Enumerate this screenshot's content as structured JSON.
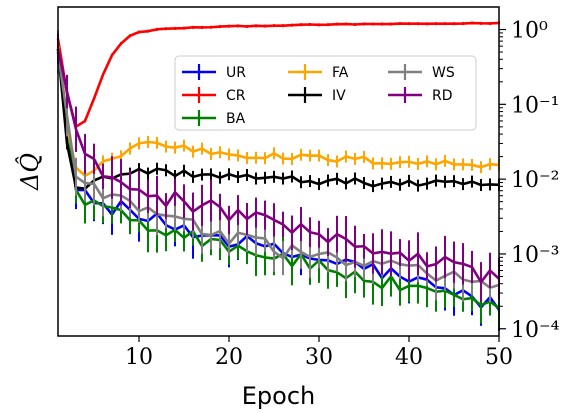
{
  "chart_data": {
    "type": "line",
    "xlabel": "Epoch",
    "ylabel": "ΔQ̂",
    "y_scale": "log",
    "y_axis_side": "right",
    "xlim": [
      1,
      50
    ],
    "ylim": [
      8e-05,
      2
    ],
    "x_ticks": [
      10,
      20,
      30,
      40,
      50
    ],
    "x_tick_labels": [
      "10",
      "20",
      "30",
      "40",
      "50"
    ],
    "y_ticks": [
      0.0001,
      0.001,
      0.01,
      0.1,
      1
    ],
    "y_tick_labels": [
      "10⁻⁴",
      "10⁻³",
      "10⁻²",
      "10⁻¹",
      "10⁰"
    ],
    "legend": {
      "placement": "upper-center",
      "columns": 3
    },
    "series": [
      {
        "name": "UR",
        "color": "#0000ff",
        "points": [
          [
            1,
            0.55
          ],
          [
            3,
            0.007
          ],
          [
            5,
            0.0048
          ],
          [
            8,
            0.004
          ],
          [
            10,
            0.0031
          ],
          [
            15,
            0.0022
          ],
          [
            20,
            0.0016
          ],
          [
            25,
            0.0011
          ],
          [
            30,
            0.00085
          ],
          [
            35,
            0.00068
          ],
          [
            40,
            0.00045
          ],
          [
            45,
            0.0003
          ],
          [
            50,
            0.0002
          ]
        ]
      },
      {
        "name": "CR",
        "color": "#ff0000",
        "points": [
          [
            1,
            0.75
          ],
          [
            2,
            0.14
          ],
          [
            3,
            0.05
          ],
          [
            4,
            0.06
          ],
          [
            5,
            0.12
          ],
          [
            6,
            0.25
          ],
          [
            7,
            0.45
          ],
          [
            8,
            0.65
          ],
          [
            9,
            0.82
          ],
          [
            10,
            0.92
          ],
          [
            12,
            1.0
          ],
          [
            15,
            1.05
          ],
          [
            20,
            1.1
          ],
          [
            25,
            1.13
          ],
          [
            30,
            1.16
          ],
          [
            35,
            1.18
          ],
          [
            40,
            1.19
          ],
          [
            45,
            1.2
          ],
          [
            50,
            1.22
          ]
        ]
      },
      {
        "name": "BA",
        "color": "#008000",
        "points": [
          [
            1,
            0.5
          ],
          [
            3,
            0.006
          ],
          [
            5,
            0.005
          ],
          [
            8,
            0.0036
          ],
          [
            10,
            0.0027
          ],
          [
            15,
            0.0019
          ],
          [
            20,
            0.0013
          ],
          [
            25,
            0.00095
          ],
          [
            30,
            0.00068
          ],
          [
            35,
            0.00048
          ],
          [
            40,
            0.00034
          ],
          [
            45,
            0.00024
          ],
          [
            50,
            0.00018
          ]
        ]
      },
      {
        "name": "FA",
        "color": "#ffa500",
        "points": [
          [
            1,
            0.6
          ],
          [
            2,
            0.05
          ],
          [
            3,
            0.013
          ],
          [
            4,
            0.012
          ],
          [
            5,
            0.014
          ],
          [
            6,
            0.017
          ],
          [
            8,
            0.021
          ],
          [
            10,
            0.03
          ],
          [
            12,
            0.03
          ],
          [
            15,
            0.026
          ],
          [
            20,
            0.022
          ],
          [
            25,
            0.02
          ],
          [
            30,
            0.019
          ],
          [
            35,
            0.018
          ],
          [
            40,
            0.017
          ],
          [
            45,
            0.016
          ],
          [
            50,
            0.016
          ]
        ]
      },
      {
        "name": "IV",
        "color": "#000000",
        "points": [
          [
            1,
            0.55
          ],
          [
            2,
            0.03
          ],
          [
            3,
            0.008
          ],
          [
            4,
            0.008
          ],
          [
            5,
            0.009
          ],
          [
            7,
            0.011
          ],
          [
            10,
            0.013
          ],
          [
            15,
            0.012
          ],
          [
            20,
            0.011
          ],
          [
            25,
            0.01
          ],
          [
            30,
            0.0095
          ],
          [
            35,
            0.009
          ],
          [
            40,
            0.0088
          ],
          [
            45,
            0.0085
          ],
          [
            50,
            0.0085
          ]
        ]
      },
      {
        "name": "WS",
        "color": "#808080",
        "points": [
          [
            1,
            0.5
          ],
          [
            3,
            0.01
          ],
          [
            5,
            0.008
          ],
          [
            8,
            0.0055
          ],
          [
            10,
            0.004
          ],
          [
            15,
            0.0025
          ],
          [
            20,
            0.0016
          ],
          [
            25,
            0.0012
          ],
          [
            30,
            0.0009
          ],
          [
            35,
            0.00075
          ],
          [
            40,
            0.0006
          ],
          [
            45,
            0.00045
          ],
          [
            50,
            0.0004
          ]
        ]
      },
      {
        "name": "RD",
        "color": "#800080",
        "points": [
          [
            1,
            0.55
          ],
          [
            3,
            0.04
          ],
          [
            5,
            0.015
          ],
          [
            8,
            0.008
          ],
          [
            10,
            0.0065
          ],
          [
            15,
            0.005
          ],
          [
            20,
            0.0035
          ],
          [
            25,
            0.0024
          ],
          [
            30,
            0.0017
          ],
          [
            35,
            0.0013
          ],
          [
            40,
            0.001
          ],
          [
            45,
            0.0007
          ],
          [
            50,
            0.00045
          ]
        ]
      }
    ]
  }
}
